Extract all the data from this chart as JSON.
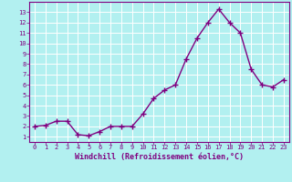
{
  "x_data": [
    0,
    1,
    2,
    3,
    4,
    5,
    6,
    7,
    8,
    9,
    10,
    11,
    12,
    13,
    14,
    15,
    16,
    17,
    18,
    19,
    20,
    21,
    22,
    23
  ],
  "y_data": [
    2.0,
    2.1,
    2.5,
    2.5,
    1.2,
    1.1,
    1.5,
    2.0,
    2.0,
    2.0,
    3.2,
    4.7,
    5.5,
    6.0,
    8.5,
    10.5,
    12.0,
    13.3,
    12.0,
    11.0,
    7.5,
    6.0,
    5.8,
    6.5
  ],
  "line_color": "#800080",
  "marker_color": "#800080",
  "bg_color": "#b2f0f0",
  "grid_color": "#ffffff",
  "xlabel": "Windchill (Refroidissement éolien,°C)",
  "ylim": [
    0.5,
    14
  ],
  "xlim": [
    -0.5,
    23.5
  ],
  "yticks": [
    1,
    2,
    3,
    4,
    5,
    6,
    7,
    8,
    9,
    10,
    11,
    12,
    13
  ],
  "xticks": [
    0,
    1,
    2,
    3,
    4,
    5,
    6,
    7,
    8,
    9,
    10,
    11,
    12,
    13,
    14,
    15,
    16,
    17,
    18,
    19,
    20,
    21,
    22,
    23
  ],
  "tick_color": "#800080",
  "spine_color": "#800080",
  "marker_size": 4,
  "line_width": 1.0,
  "tick_fontsize": 5,
  "xlabel_fontsize": 6
}
